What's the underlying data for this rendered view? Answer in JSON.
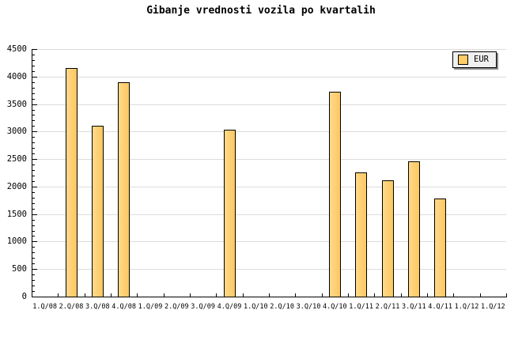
{
  "title": "Gibanje vrednosti vozila po kvartalih",
  "legend": {
    "label": "EUR",
    "swatch_color": "#FFCC66"
  },
  "colors": {
    "background": "#FFFFFF",
    "bar_fill": "#FFCC66",
    "bar_fill_light": "#FFD98C",
    "bar_border": "#000000",
    "gridline": "#DCDCDC",
    "axis": "#000000",
    "legend_bg": "#F0F0F0",
    "legend_shadow": "#888888",
    "text": "#000000"
  },
  "chart_data": {
    "type": "bar",
    "title": "Gibanje vrednosti vozila po kvartalih",
    "categories": [
      "1.Q/08",
      "2.Q/08",
      "3.Q/08",
      "4.Q/08",
      "1.Q/09",
      "2.Q/09",
      "3.Q/09",
      "4.Q/09",
      "1.Q/10",
      "2.Q/10",
      "3.Q/10",
      "4.Q/10",
      "1.Q/11",
      "2.Q/11",
      "3.Q/11",
      "4.Q/11",
      "1.Q/12",
      "1.Q/12"
    ],
    "series": [
      {
        "name": "EUR",
        "values": [
          null,
          4160,
          3110,
          3890,
          null,
          null,
          null,
          3040,
          null,
          null,
          null,
          3720,
          2260,
          2120,
          2460,
          1780,
          null,
          null
        ]
      }
    ],
    "xlabel": "",
    "ylabel": "",
    "ylim": [
      0,
      4500
    ],
    "yticks": [
      0,
      500,
      1000,
      1500,
      2000,
      2500,
      3000,
      3500,
      4000,
      4500
    ],
    "y_minor_tick_interval": 100,
    "grid": "horizontal",
    "legend_position": "top-right"
  }
}
